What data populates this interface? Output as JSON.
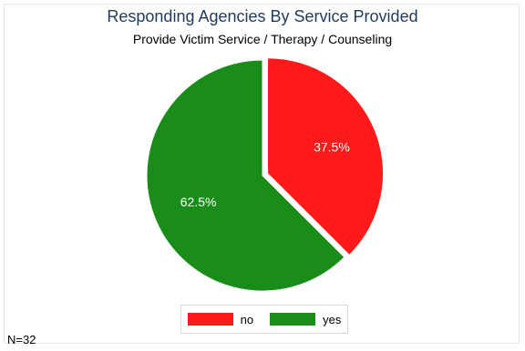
{
  "chart_data": {
    "type": "pie",
    "title": "Responding Agencies By Service Provided",
    "subtitle": "Provide Victim Service / Therapy / Counseling",
    "categories": [
      "no",
      "yes"
    ],
    "values": [
      37.5,
      62.5
    ],
    "labels": [
      "37.5%",
      "62.5%"
    ],
    "colors": [
      "#ff1a1a",
      "#1a8c1a"
    ],
    "legend_position": "bottom",
    "exploded": "no"
  },
  "note": "N=32"
}
